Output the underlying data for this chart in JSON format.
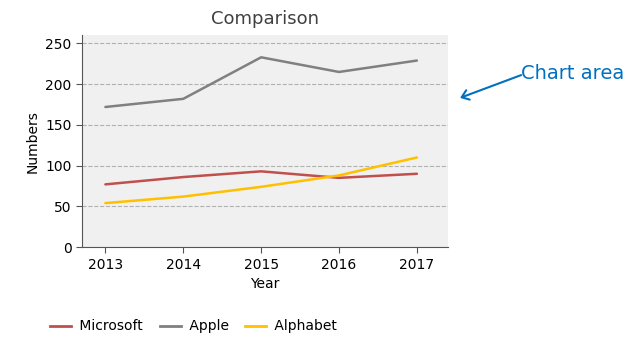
{
  "title": "Comparison",
  "xlabel": "Year",
  "ylabel": "Numbers",
  "years": [
    2013,
    2014,
    2015,
    2016,
    2017
  ],
  "microsoft": [
    77,
    86,
    93,
    85,
    90
  ],
  "apple": [
    172,
    182,
    233,
    215,
    229
  ],
  "alphabet": [
    54,
    62,
    74,
    88,
    110
  ],
  "microsoft_color": "#c0504d",
  "apple_color": "#808080",
  "alphabet_color": "#ffc000",
  "ylim": [
    0,
    260
  ],
  "yticks": [
    0,
    50,
    100,
    150,
    200,
    250
  ],
  "annotation_text": "Chart area",
  "annotation_color": "#0070c0",
  "annotation_arrow_color": "#0070c0",
  "bg_outer": "#ffffff",
  "bg_plot": "#f0f0f0",
  "grid_color": "#aaaaaa",
  "title_fontsize": 13,
  "label_fontsize": 10,
  "tick_fontsize": 10,
  "legend_fontsize": 10
}
